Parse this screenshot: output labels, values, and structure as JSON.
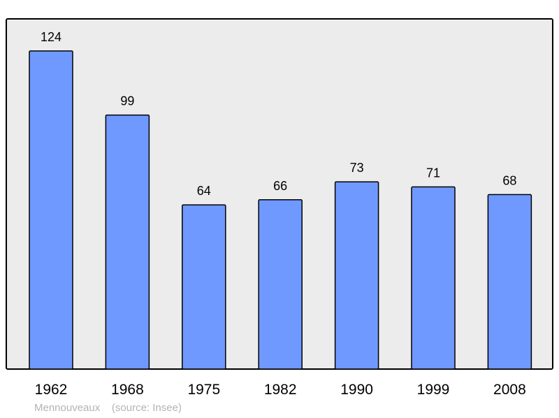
{
  "chart_data": {
    "type": "bar",
    "categories": [
      "1962",
      "1968",
      "1975",
      "1982",
      "1990",
      "1999",
      "2008"
    ],
    "values": [
      124,
      99,
      64,
      66,
      73,
      71,
      68
    ],
    "title": "",
    "xlabel": "",
    "ylabel": "",
    "ylim": [
      0,
      136.5
    ],
    "grid": false,
    "colors": {
      "bar": "#7099ff",
      "plot_background": "#ececec",
      "border": "#000000"
    }
  },
  "footer": {
    "place": "Mennouveaux",
    "source": "(source: Insee)"
  }
}
